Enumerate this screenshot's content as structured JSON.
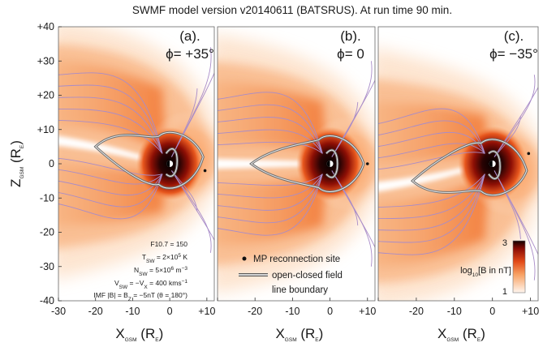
{
  "title": "SWMF model version v20140611 (BATSRUS).  At run time 90 min.",
  "chart_data": {
    "type": "heatmap",
    "title": "SWMF model version v20140611 (BATSRUS).  At run time 90 min.",
    "xlabel": {
      "main": "X",
      "sub": "GSM",
      "unit_open": "(R",
      "unit_sub": "E",
      "unit_close": ")"
    },
    "ylabel": {
      "main": "Z",
      "sub": "GSM",
      "unit_open": "(R",
      "unit_sub": "E",
      "unit_close": ")"
    },
    "xlim": [
      -30,
      12
    ],
    "ylim": [
      -40,
      40
    ],
    "x_ticks": [
      "-30",
      "-20",
      "-10",
      "0",
      "+10"
    ],
    "x_tick_values": [
      -30,
      -20,
      -10,
      0,
      10
    ],
    "y_ticks": [
      "+40",
      "+30",
      "+20",
      "+10",
      "0",
      "-10",
      "-20",
      "-30",
      "-40"
    ],
    "y_tick_values": [
      40,
      30,
      20,
      10,
      0,
      -10,
      -20,
      -30,
      -40
    ],
    "panels": [
      {
        "label": "(a).",
        "phi": "ϕ= +35°",
        "tilt": 1,
        "mp_site": {
          "x": 9.5,
          "z": -2
        },
        "boundary": {
          "tail_x": -20,
          "tail_z": 5,
          "thickness": 6
        }
      },
      {
        "label": "(b).",
        "phi": "ϕ= 0",
        "tilt": 0,
        "mp_site": {
          "x": 10,
          "z": 0
        },
        "boundary": {
          "tail_x": -21,
          "tail_z": 0,
          "thickness": 5
        }
      },
      {
        "label": "(c).",
        "phi": "ϕ= −35°",
        "tilt": -1,
        "mp_site": {
          "x": 9.5,
          "z": 3
        },
        "boundary": {
          "tail_x": -21,
          "tail_z": -5,
          "thickness": 6
        }
      }
    ],
    "colorbar": {
      "min": 1,
      "max": 3,
      "min_label": "1",
      "max_label": "3",
      "label": "log",
      "label_sub": "10",
      "label_rest": "[B in nT]"
    },
    "colors": {
      "low": "#fff8f2",
      "mid": "#f57d3a",
      "high": "#b21208",
      "max": "#1a0202",
      "field_line": "#a98cc8",
      "boundary": "#8a8a8a"
    }
  },
  "params": {
    "f107": "F10.7 = 150",
    "t": [
      "T",
      "SW",
      " = 2×10",
      "5",
      " K"
    ],
    "n": [
      "N",
      "SW",
      " = 5×10",
      "6",
      " m",
      "−3"
    ],
    "v": [
      "V",
      "SW",
      " = −V",
      "X",
      " = 400 kms",
      "−1"
    ],
    "imf": [
      "IMF |B| = B",
      "Z",
      " = −5nT (θ = 180°)"
    ]
  },
  "legend": {
    "mp_reconnection": "MP reconnection site",
    "boundary_line1": "open-closed field",
    "boundary_line2": "line boundary"
  }
}
